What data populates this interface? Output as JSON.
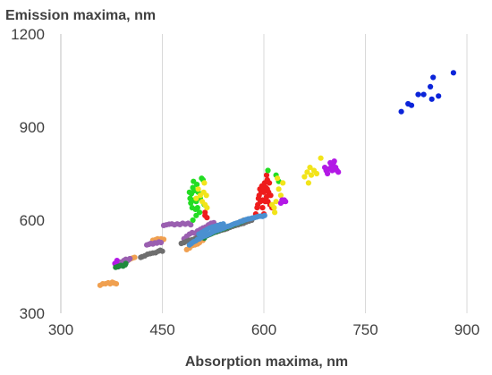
{
  "chart_data": {
    "type": "scatter",
    "ylabel": "Emission maxima, nm",
    "xlabel": "Absorption maxima, nm",
    "xlim": [
      300,
      900
    ],
    "ylim": [
      300,
      1200
    ],
    "x_ticks": [
      "300",
      "450",
      "600",
      "750",
      "900"
    ],
    "y_ticks": [
      "300",
      "600",
      "900",
      "1200"
    ],
    "grid": "vertical",
    "legend": "none",
    "series": [
      {
        "color": "#0b24d9",
        "points": [
          [
            803,
            950
          ],
          [
            813,
            975
          ],
          [
            818,
            970
          ],
          [
            828,
            1005
          ],
          [
            836,
            1005
          ],
          [
            846,
            1030
          ],
          [
            848,
            990
          ],
          [
            850,
            1060
          ],
          [
            858,
            1000
          ],
          [
            880,
            1075
          ]
        ]
      },
      {
        "color": "#ee1c1c",
        "points": [
          [
            513,
            615
          ],
          [
            513,
            625
          ],
          [
            516,
            608
          ],
          [
            588,
            620
          ],
          [
            590,
            640
          ],
          [
            591,
            650
          ],
          [
            592,
            670
          ],
          [
            593,
            680
          ],
          [
            594,
            700
          ],
          [
            595,
            660
          ],
          [
            596,
            690
          ],
          [
            597,
            710
          ],
          [
            598,
            640
          ],
          [
            598,
            665
          ],
          [
            599,
            700
          ],
          [
            600,
            690
          ],
          [
            601,
            720
          ],
          [
            602,
            660
          ],
          [
            603,
            705
          ],
          [
            604,
            675
          ],
          [
            604,
            745
          ],
          [
            605,
            700
          ],
          [
            606,
            660
          ],
          [
            607,
            690
          ],
          [
            608,
            720
          ],
          [
            609,
            650
          ],
          [
            610,
            680
          ],
          [
            612,
            640
          ],
          [
            605,
            730
          ],
          [
            600,
            620
          ]
        ]
      },
      {
        "color": "#22dd22",
        "points": [
          [
            490,
            690
          ],
          [
            491,
            670
          ],
          [
            492,
            655
          ],
          [
            493,
            685
          ],
          [
            494,
            640
          ],
          [
            495,
            705
          ],
          [
            496,
            725
          ],
          [
            497,
            665
          ],
          [
            497,
            695
          ],
          [
            499,
            635
          ],
          [
            500,
            660
          ],
          [
            501,
            715
          ],
          [
            502,
            640
          ],
          [
            503,
            690
          ],
          [
            505,
            625
          ],
          [
            506,
            670
          ],
          [
            508,
            735
          ],
          [
            510,
            730
          ],
          [
            512,
            650
          ],
          [
            606,
            760
          ],
          [
            618,
            745
          ],
          [
            622,
            725
          ],
          [
            495,
            600
          ],
          [
            500,
            615
          ]
        ]
      },
      {
        "color": "#f2e41a",
        "points": [
          [
            500,
            670
          ],
          [
            503,
            700
          ],
          [
            506,
            680
          ],
          [
            509,
            660
          ],
          [
            511,
            690
          ],
          [
            512,
            720
          ],
          [
            513,
            650
          ],
          [
            515,
            680
          ],
          [
            516,
            640
          ],
          [
            615,
            640
          ],
          [
            618,
            660
          ],
          [
            622,
            700
          ],
          [
            625,
            680
          ],
          [
            628,
            720
          ],
          [
            620,
            735
          ],
          [
            612,
            650
          ],
          [
            660,
            740
          ],
          [
            664,
            755
          ],
          [
            666,
            720
          ],
          [
            668,
            770
          ],
          [
            670,
            745
          ],
          [
            674,
            760
          ],
          [
            678,
            750
          ],
          [
            684,
            800
          ],
          [
            616,
            625
          ]
        ]
      },
      {
        "color": "#b319e6",
        "points": [
          [
            380,
            460
          ],
          [
            383,
            470
          ],
          [
            385,
            450
          ],
          [
            386,
            465
          ],
          [
            625,
            655
          ],
          [
            627,
            665
          ],
          [
            628,
            660
          ],
          [
            632,
            660
          ],
          [
            630,
            665
          ],
          [
            690,
            770
          ],
          [
            692,
            760
          ],
          [
            694,
            750
          ],
          [
            696,
            765
          ],
          [
            700,
            775
          ],
          [
            701,
            760
          ],
          [
            703,
            785
          ],
          [
            704,
            790
          ],
          [
            706,
            770
          ],
          [
            708,
            760
          ],
          [
            710,
            755
          ],
          [
            698,
            785
          ],
          [
            702,
            765
          ]
        ]
      },
      {
        "color": "#f0a050",
        "points": [
          [
            358,
            390
          ],
          [
            362,
            395
          ],
          [
            366,
            395
          ],
          [
            370,
            398
          ],
          [
            373,
            395
          ],
          [
            376,
            400
          ],
          [
            379,
            397
          ],
          [
            382,
            395
          ],
          [
            396,
            470
          ],
          [
            400,
            472
          ],
          [
            403,
            475
          ],
          [
            406,
            478
          ],
          [
            409,
            480
          ],
          [
            436,
            535
          ],
          [
            440,
            537
          ],
          [
            443,
            540
          ],
          [
            446,
            536
          ],
          [
            448,
            540
          ],
          [
            452,
            538
          ],
          [
            486,
            505
          ],
          [
            490,
            510
          ],
          [
            494,
            518
          ],
          [
            498,
            520
          ],
          [
            502,
            523
          ],
          [
            505,
            528
          ],
          [
            510,
            535
          ],
          [
            560,
            590
          ],
          [
            565,
            595
          ],
          [
            570,
            600
          ],
          [
            575,
            598
          ],
          [
            580,
            602
          ]
        ]
      },
      {
        "color": "#9a5fb0",
        "points": [
          [
            390,
            465
          ],
          [
            393,
            470
          ],
          [
            396,
            474
          ],
          [
            399,
            470
          ],
          [
            402,
            476
          ],
          [
            427,
            520
          ],
          [
            430,
            522
          ],
          [
            433,
            525
          ],
          [
            436,
            523
          ],
          [
            439,
            527
          ],
          [
            442,
            526
          ],
          [
            445,
            530
          ],
          [
            448,
            528
          ],
          [
            452,
            583
          ],
          [
            456,
            585
          ],
          [
            460,
            587
          ],
          [
            464,
            588
          ],
          [
            468,
            585
          ],
          [
            472,
            588
          ],
          [
            476,
            586
          ],
          [
            480,
            590
          ],
          [
            484,
            587
          ],
          [
            488,
            590
          ],
          [
            492,
            585
          ],
          [
            482,
            540
          ],
          [
            486,
            548
          ],
          [
            490,
            555
          ],
          [
            494,
            560
          ],
          [
            498,
            558
          ],
          [
            502,
            565
          ],
          [
            506,
            570
          ],
          [
            510,
            575
          ],
          [
            514,
            578
          ],
          [
            518,
            585
          ],
          [
            522,
            590
          ],
          [
            526,
            592
          ]
        ]
      },
      {
        "color": "#6e6e6e",
        "points": [
          [
            418,
            480
          ],
          [
            420,
            482
          ],
          [
            424,
            485
          ],
          [
            428,
            490
          ],
          [
            432,
            492
          ],
          [
            436,
            494
          ],
          [
            440,
            495
          ],
          [
            444,
            500
          ],
          [
            447,
            503
          ],
          [
            450,
            500
          ],
          [
            478,
            525
          ],
          [
            482,
            528
          ],
          [
            486,
            532
          ],
          [
            490,
            535
          ],
          [
            494,
            537
          ],
          [
            498,
            540
          ],
          [
            502,
            545
          ],
          [
            506,
            548
          ],
          [
            510,
            550
          ],
          [
            514,
            553
          ],
          [
            518,
            552
          ],
          [
            522,
            556
          ],
          [
            526,
            560
          ],
          [
            530,
            562
          ],
          [
            534,
            565
          ],
          [
            538,
            568
          ],
          [
            542,
            570
          ],
          [
            546,
            573
          ],
          [
            550,
            577
          ],
          [
            554,
            580
          ],
          [
            558,
            583
          ],
          [
            562,
            585
          ],
          [
            566,
            588
          ],
          [
            570,
            590
          ],
          [
            574,
            594
          ],
          [
            578,
            597
          ],
          [
            582,
            600
          ]
        ]
      },
      {
        "color": "#1f8a3c",
        "points": [
          [
            381,
            448
          ],
          [
            384,
            450
          ],
          [
            386,
            452
          ],
          [
            389,
            454
          ],
          [
            392,
            452
          ],
          [
            395,
            456
          ],
          [
            396,
            460
          ],
          [
            500,
            535
          ],
          [
            504,
            540
          ],
          [
            508,
            546
          ],
          [
            512,
            542
          ],
          [
            516,
            550
          ],
          [
            520,
            554
          ],
          [
            524,
            558
          ],
          [
            528,
            562
          ],
          [
            532,
            565
          ],
          [
            536,
            569
          ],
          [
            540,
            572
          ],
          [
            544,
            575
          ],
          [
            548,
            579
          ],
          [
            552,
            583
          ],
          [
            556,
            586
          ],
          [
            560,
            590
          ],
          [
            564,
            592
          ],
          [
            568,
            596
          ],
          [
            572,
            600
          ]
        ]
      },
      {
        "color": "#4a90d0",
        "points": [
          [
            490,
            520
          ],
          [
            493,
            525
          ],
          [
            496,
            530
          ],
          [
            499,
            533
          ],
          [
            502,
            538
          ],
          [
            505,
            540
          ],
          [
            508,
            545
          ],
          [
            511,
            548
          ],
          [
            514,
            550
          ],
          [
            517,
            553
          ],
          [
            520,
            556
          ],
          [
            523,
            560
          ],
          [
            526,
            563
          ],
          [
            529,
            566
          ],
          [
            532,
            568
          ],
          [
            535,
            570
          ],
          [
            538,
            573
          ],
          [
            541,
            575
          ],
          [
            544,
            578
          ],
          [
            547,
            580
          ],
          [
            550,
            582
          ],
          [
            553,
            585
          ],
          [
            556,
            588
          ],
          [
            559,
            590
          ],
          [
            562,
            592
          ],
          [
            565,
            595
          ],
          [
            568,
            597
          ],
          [
            571,
            600
          ],
          [
            574,
            602
          ],
          [
            577,
            604
          ],
          [
            580,
            605
          ],
          [
            583,
            607
          ],
          [
            586,
            608
          ],
          [
            589,
            610
          ],
          [
            592,
            612
          ],
          [
            595,
            613
          ],
          [
            598,
            612
          ],
          [
            601,
            615
          ],
          [
            504,
            555
          ],
          [
            508,
            560
          ],
          [
            512,
            565
          ],
          [
            516,
            570
          ],
          [
            520,
            575
          ],
          [
            524,
            578
          ],
          [
            528,
            580
          ],
          [
            532,
            583
          ],
          [
            536,
            586
          ],
          [
            540,
            588
          ]
        ]
      }
    ]
  }
}
